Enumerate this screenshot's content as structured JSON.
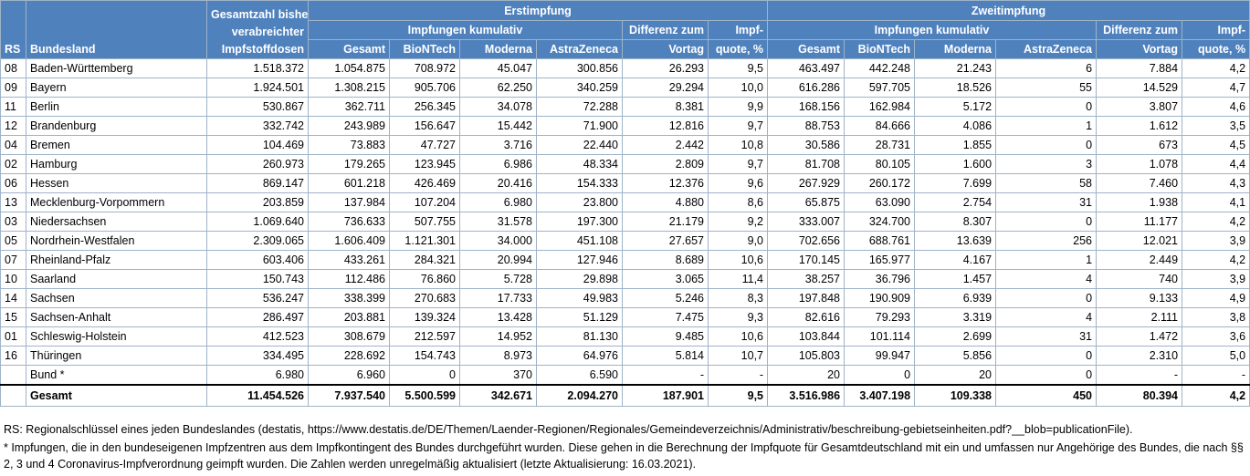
{
  "header": {
    "rs": "RS",
    "bundesland": "Bundesland",
    "gesamtzahl_line1": "Gesamtzahl bisher",
    "gesamtzahl_line2": "verabreichter",
    "gesamtzahl_line3": "Impfstoffdosen",
    "erstimpfung": "Erstimpfung",
    "zweitimpfung": "Zweitimpfung",
    "impfungen_kumulativ": "Impfungen kumulativ",
    "differenz_line1": "Differenz zum",
    "differenz_line2": "Vortag",
    "quote_line1": "Impf-",
    "quote_line2": "quote, %",
    "gesamt": "Gesamt",
    "biontech": "BioNTech",
    "moderna": "Moderna",
    "astrazeneca": "AstraZeneca"
  },
  "rows": [
    {
      "rs": "08",
      "land": "Baden-Württemberg",
      "total": "1.518.372",
      "e_gesamt": "1.054.875",
      "e_bio": "708.972",
      "e_mod": "45.047",
      "e_az": "300.856",
      "e_diff": "26.293",
      "e_quote": "9,5",
      "z_gesamt": "463.497",
      "z_bio": "442.248",
      "z_mod": "21.243",
      "z_az": "6",
      "z_diff": "7.884",
      "z_quote": "4,2"
    },
    {
      "rs": "09",
      "land": "Bayern",
      "total": "1.924.501",
      "e_gesamt": "1.308.215",
      "e_bio": "905.706",
      "e_mod": "62.250",
      "e_az": "340.259",
      "e_diff": "29.294",
      "e_quote": "10,0",
      "z_gesamt": "616.286",
      "z_bio": "597.705",
      "z_mod": "18.526",
      "z_az": "55",
      "z_diff": "14.529",
      "z_quote": "4,7"
    },
    {
      "rs": "11",
      "land": "Berlin",
      "total": "530.867",
      "e_gesamt": "362.711",
      "e_bio": "256.345",
      "e_mod": "34.078",
      "e_az": "72.288",
      "e_diff": "8.381",
      "e_quote": "9,9",
      "z_gesamt": "168.156",
      "z_bio": "162.984",
      "z_mod": "5.172",
      "z_az": "0",
      "z_diff": "3.807",
      "z_quote": "4,6"
    },
    {
      "rs": "12",
      "land": "Brandenburg",
      "total": "332.742",
      "e_gesamt": "243.989",
      "e_bio": "156.647",
      "e_mod": "15.442",
      "e_az": "71.900",
      "e_diff": "12.816",
      "e_quote": "9,7",
      "z_gesamt": "88.753",
      "z_bio": "84.666",
      "z_mod": "4.086",
      "z_az": "1",
      "z_diff": "1.612",
      "z_quote": "3,5"
    },
    {
      "rs": "04",
      "land": "Bremen",
      "total": "104.469",
      "e_gesamt": "73.883",
      "e_bio": "47.727",
      "e_mod": "3.716",
      "e_az": "22.440",
      "e_diff": "2.442",
      "e_quote": "10,8",
      "z_gesamt": "30.586",
      "z_bio": "28.731",
      "z_mod": "1.855",
      "z_az": "0",
      "z_diff": "673",
      "z_quote": "4,5"
    },
    {
      "rs": "02",
      "land": "Hamburg",
      "total": "260.973",
      "e_gesamt": "179.265",
      "e_bio": "123.945",
      "e_mod": "6.986",
      "e_az": "48.334",
      "e_diff": "2.809",
      "e_quote": "9,7",
      "z_gesamt": "81.708",
      "z_bio": "80.105",
      "z_mod": "1.600",
      "z_az": "3",
      "z_diff": "1.078",
      "z_quote": "4,4"
    },
    {
      "rs": "06",
      "land": "Hessen",
      "total": "869.147",
      "e_gesamt": "601.218",
      "e_bio": "426.469",
      "e_mod": "20.416",
      "e_az": "154.333",
      "e_diff": "12.376",
      "e_quote": "9,6",
      "z_gesamt": "267.929",
      "z_bio": "260.172",
      "z_mod": "7.699",
      "z_az": "58",
      "z_diff": "7.460",
      "z_quote": "4,3"
    },
    {
      "rs": "13",
      "land": "Mecklenburg-Vorpommern",
      "total": "203.859",
      "e_gesamt": "137.984",
      "e_bio": "107.204",
      "e_mod": "6.980",
      "e_az": "23.800",
      "e_diff": "4.880",
      "e_quote": "8,6",
      "z_gesamt": "65.875",
      "z_bio": "63.090",
      "z_mod": "2.754",
      "z_az": "31",
      "z_diff": "1.938",
      "z_quote": "4,1"
    },
    {
      "rs": "03",
      "land": "Niedersachsen",
      "total": "1.069.640",
      "e_gesamt": "736.633",
      "e_bio": "507.755",
      "e_mod": "31.578",
      "e_az": "197.300",
      "e_diff": "21.179",
      "e_quote": "9,2",
      "z_gesamt": "333.007",
      "z_bio": "324.700",
      "z_mod": "8.307",
      "z_az": "0",
      "z_diff": "11.177",
      "z_quote": "4,2"
    },
    {
      "rs": "05",
      "land": "Nordrhein-Westfalen",
      "total": "2.309.065",
      "e_gesamt": "1.606.409",
      "e_bio": "1.121.301",
      "e_mod": "34.000",
      "e_az": "451.108",
      "e_diff": "27.657",
      "e_quote": "9,0",
      "z_gesamt": "702.656",
      "z_bio": "688.761",
      "z_mod": "13.639",
      "z_az": "256",
      "z_diff": "12.021",
      "z_quote": "3,9"
    },
    {
      "rs": "07",
      "land": "Rheinland-Pfalz",
      "total": "603.406",
      "e_gesamt": "433.261",
      "e_bio": "284.321",
      "e_mod": "20.994",
      "e_az": "127.946",
      "e_diff": "8.689",
      "e_quote": "10,6",
      "z_gesamt": "170.145",
      "z_bio": "165.977",
      "z_mod": "4.167",
      "z_az": "1",
      "z_diff": "2.449",
      "z_quote": "4,2"
    },
    {
      "rs": "10",
      "land": "Saarland",
      "total": "150.743",
      "e_gesamt": "112.486",
      "e_bio": "76.860",
      "e_mod": "5.728",
      "e_az": "29.898",
      "e_diff": "3.065",
      "e_quote": "11,4",
      "z_gesamt": "38.257",
      "z_bio": "36.796",
      "z_mod": "1.457",
      "z_az": "4",
      "z_diff": "740",
      "z_quote": "3,9"
    },
    {
      "rs": "14",
      "land": "Sachsen",
      "total": "536.247",
      "e_gesamt": "338.399",
      "e_bio": "270.683",
      "e_mod": "17.733",
      "e_az": "49.983",
      "e_diff": "5.246",
      "e_quote": "8,3",
      "z_gesamt": "197.848",
      "z_bio": "190.909",
      "z_mod": "6.939",
      "z_az": "0",
      "z_diff": "9.133",
      "z_quote": "4,9"
    },
    {
      "rs": "15",
      "land": "Sachsen-Anhalt",
      "total": "286.497",
      "e_gesamt": "203.881",
      "e_bio": "139.324",
      "e_mod": "13.428",
      "e_az": "51.129",
      "e_diff": "7.475",
      "e_quote": "9,3",
      "z_gesamt": "82.616",
      "z_bio": "79.293",
      "z_mod": "3.319",
      "z_az": "4",
      "z_diff": "2.111",
      "z_quote": "3,8"
    },
    {
      "rs": "01",
      "land": "Schleswig-Holstein",
      "total": "412.523",
      "e_gesamt": "308.679",
      "e_bio": "212.597",
      "e_mod": "14.952",
      "e_az": "81.130",
      "e_diff": "9.485",
      "e_quote": "10,6",
      "z_gesamt": "103.844",
      "z_bio": "101.114",
      "z_mod": "2.699",
      "z_az": "31",
      "z_diff": "1.472",
      "z_quote": "3,6"
    },
    {
      "rs": "16",
      "land": "Thüringen",
      "total": "334.495",
      "e_gesamt": "228.692",
      "e_bio": "154.743",
      "e_mod": "8.973",
      "e_az": "64.976",
      "e_diff": "5.814",
      "e_quote": "10,7",
      "z_gesamt": "105.803",
      "z_bio": "99.947",
      "z_mod": "5.856",
      "z_az": "0",
      "z_diff": "2.310",
      "z_quote": "5,0"
    },
    {
      "rs": "",
      "land": "Bund *",
      "total": "6.980",
      "e_gesamt": "6.960",
      "e_bio": "0",
      "e_mod": "370",
      "e_az": "6.590",
      "e_diff": "-",
      "e_quote": "-",
      "z_gesamt": "20",
      "z_bio": "0",
      "z_mod": "20",
      "z_az": "0",
      "z_diff": "-",
      "z_quote": "-"
    }
  ],
  "total": {
    "rs": "",
    "land": "Gesamt",
    "total": "11.454.526",
    "e_gesamt": "7.937.540",
    "e_bio": "5.500.599",
    "e_mod": "342.671",
    "e_az": "2.094.270",
    "e_diff": "187.901",
    "e_quote": "9,5",
    "z_gesamt": "3.516.986",
    "z_bio": "3.407.198",
    "z_mod": "109.338",
    "z_az": "450",
    "z_diff": "80.394",
    "z_quote": "4,2"
  },
  "footnotes": {
    "rs_note": "RS: Regionalschlüssel eines jeden Bundeslandes (destatis, https://www.destatis.de/DE/Themen/Laender-Regionen/Regionales/Gemeindeverzeichnis/Administrativ/beschreibung-gebietseinheiten.pdf?__blob=publicationFile).",
    "bund_note": "* Impfungen, die in den bundeseigenen Impfzentren aus dem Impfkontingent des Bundes durchgeführt wurden. Diese gehen in die Berechnung der Impfquote für Gesamtdeutschland mit ein und umfassen nur Angehörige des Bundes, die nach §§ 2, 3 und 4 Coronavirus-Impfverordnung geimpft wurden. Die Zahlen werden unregelmäßig aktualisiert (letzte Aktualisierung: 16.03.2021)."
  },
  "colors": {
    "header_bg": "#4f81bd",
    "header_text": "#ffffff",
    "grid": "#9fb3c8"
  }
}
